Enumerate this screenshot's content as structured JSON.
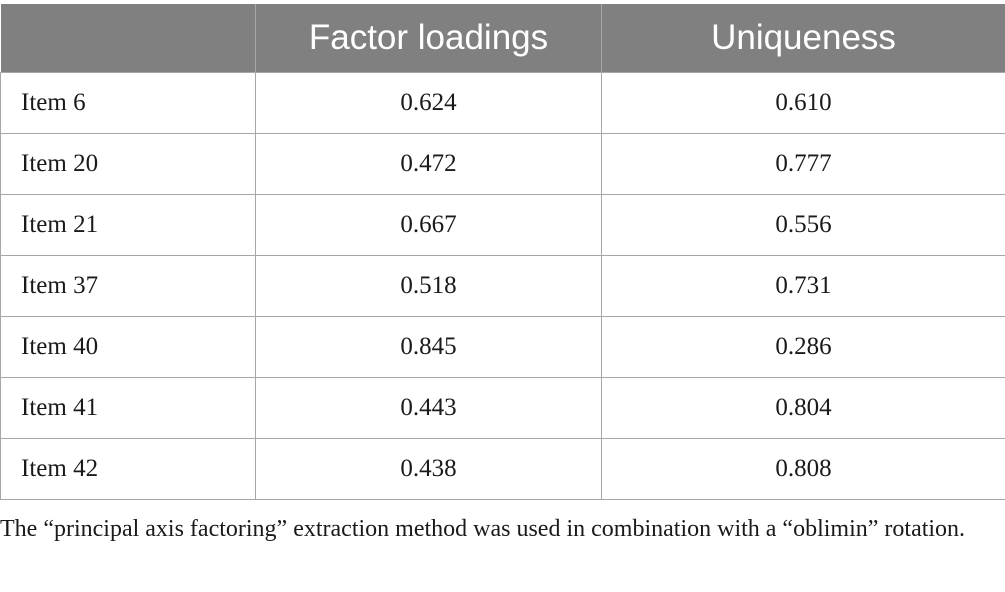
{
  "table": {
    "headers": [
      "",
      "Factor loadings",
      "Uniqueness"
    ],
    "rows": [
      {
        "item": "Item 6",
        "loading": "0.624",
        "uniqueness": "0.610"
      },
      {
        "item": "Item 20",
        "loading": "0.472",
        "uniqueness": "0.777"
      },
      {
        "item": "Item 21",
        "loading": "0.667",
        "uniqueness": "0.556"
      },
      {
        "item": "Item 37",
        "loading": "0.518",
        "uniqueness": "0.731"
      },
      {
        "item": "Item 40",
        "loading": "0.845",
        "uniqueness": "0.286"
      },
      {
        "item": "Item 41",
        "loading": "0.443",
        "uniqueness": "0.804"
      },
      {
        "item": "Item 42",
        "loading": "0.438",
        "uniqueness": "0.808"
      }
    ]
  },
  "footnote": "The “principal axis factoring” extraction method was used in combination with a “oblimin” rotation.",
  "colors": {
    "header_bg": "#808080",
    "header_text": "#ffffff",
    "border": "#a6a6a6"
  }
}
